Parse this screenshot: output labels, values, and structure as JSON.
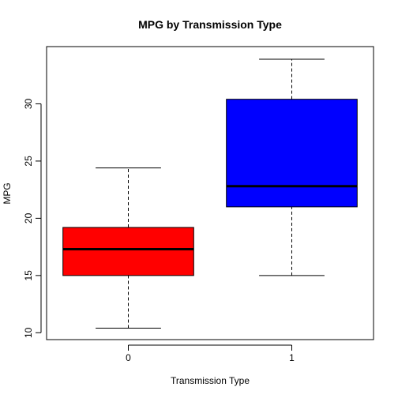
{
  "chart_data": {
    "type": "boxplot",
    "title": "MPG by Transmission Type",
    "xlabel": "Transmission Type",
    "ylabel": "MPG",
    "categories": [
      "0",
      "1"
    ],
    "ylim": [
      9.4,
      35.0
    ],
    "yticks": [
      10,
      15,
      20,
      25,
      30
    ],
    "grid": false,
    "boxes": [
      {
        "category": "0",
        "min": 10.4,
        "q1": 15.0,
        "median": 17.3,
        "q3": 19.2,
        "max": 24.4,
        "color": "#ff0000"
      },
      {
        "category": "1",
        "min": 15.0,
        "q1": 21.0,
        "median": 22.8,
        "q3": 30.4,
        "max": 33.9,
        "color": "#0000ff"
      }
    ]
  }
}
